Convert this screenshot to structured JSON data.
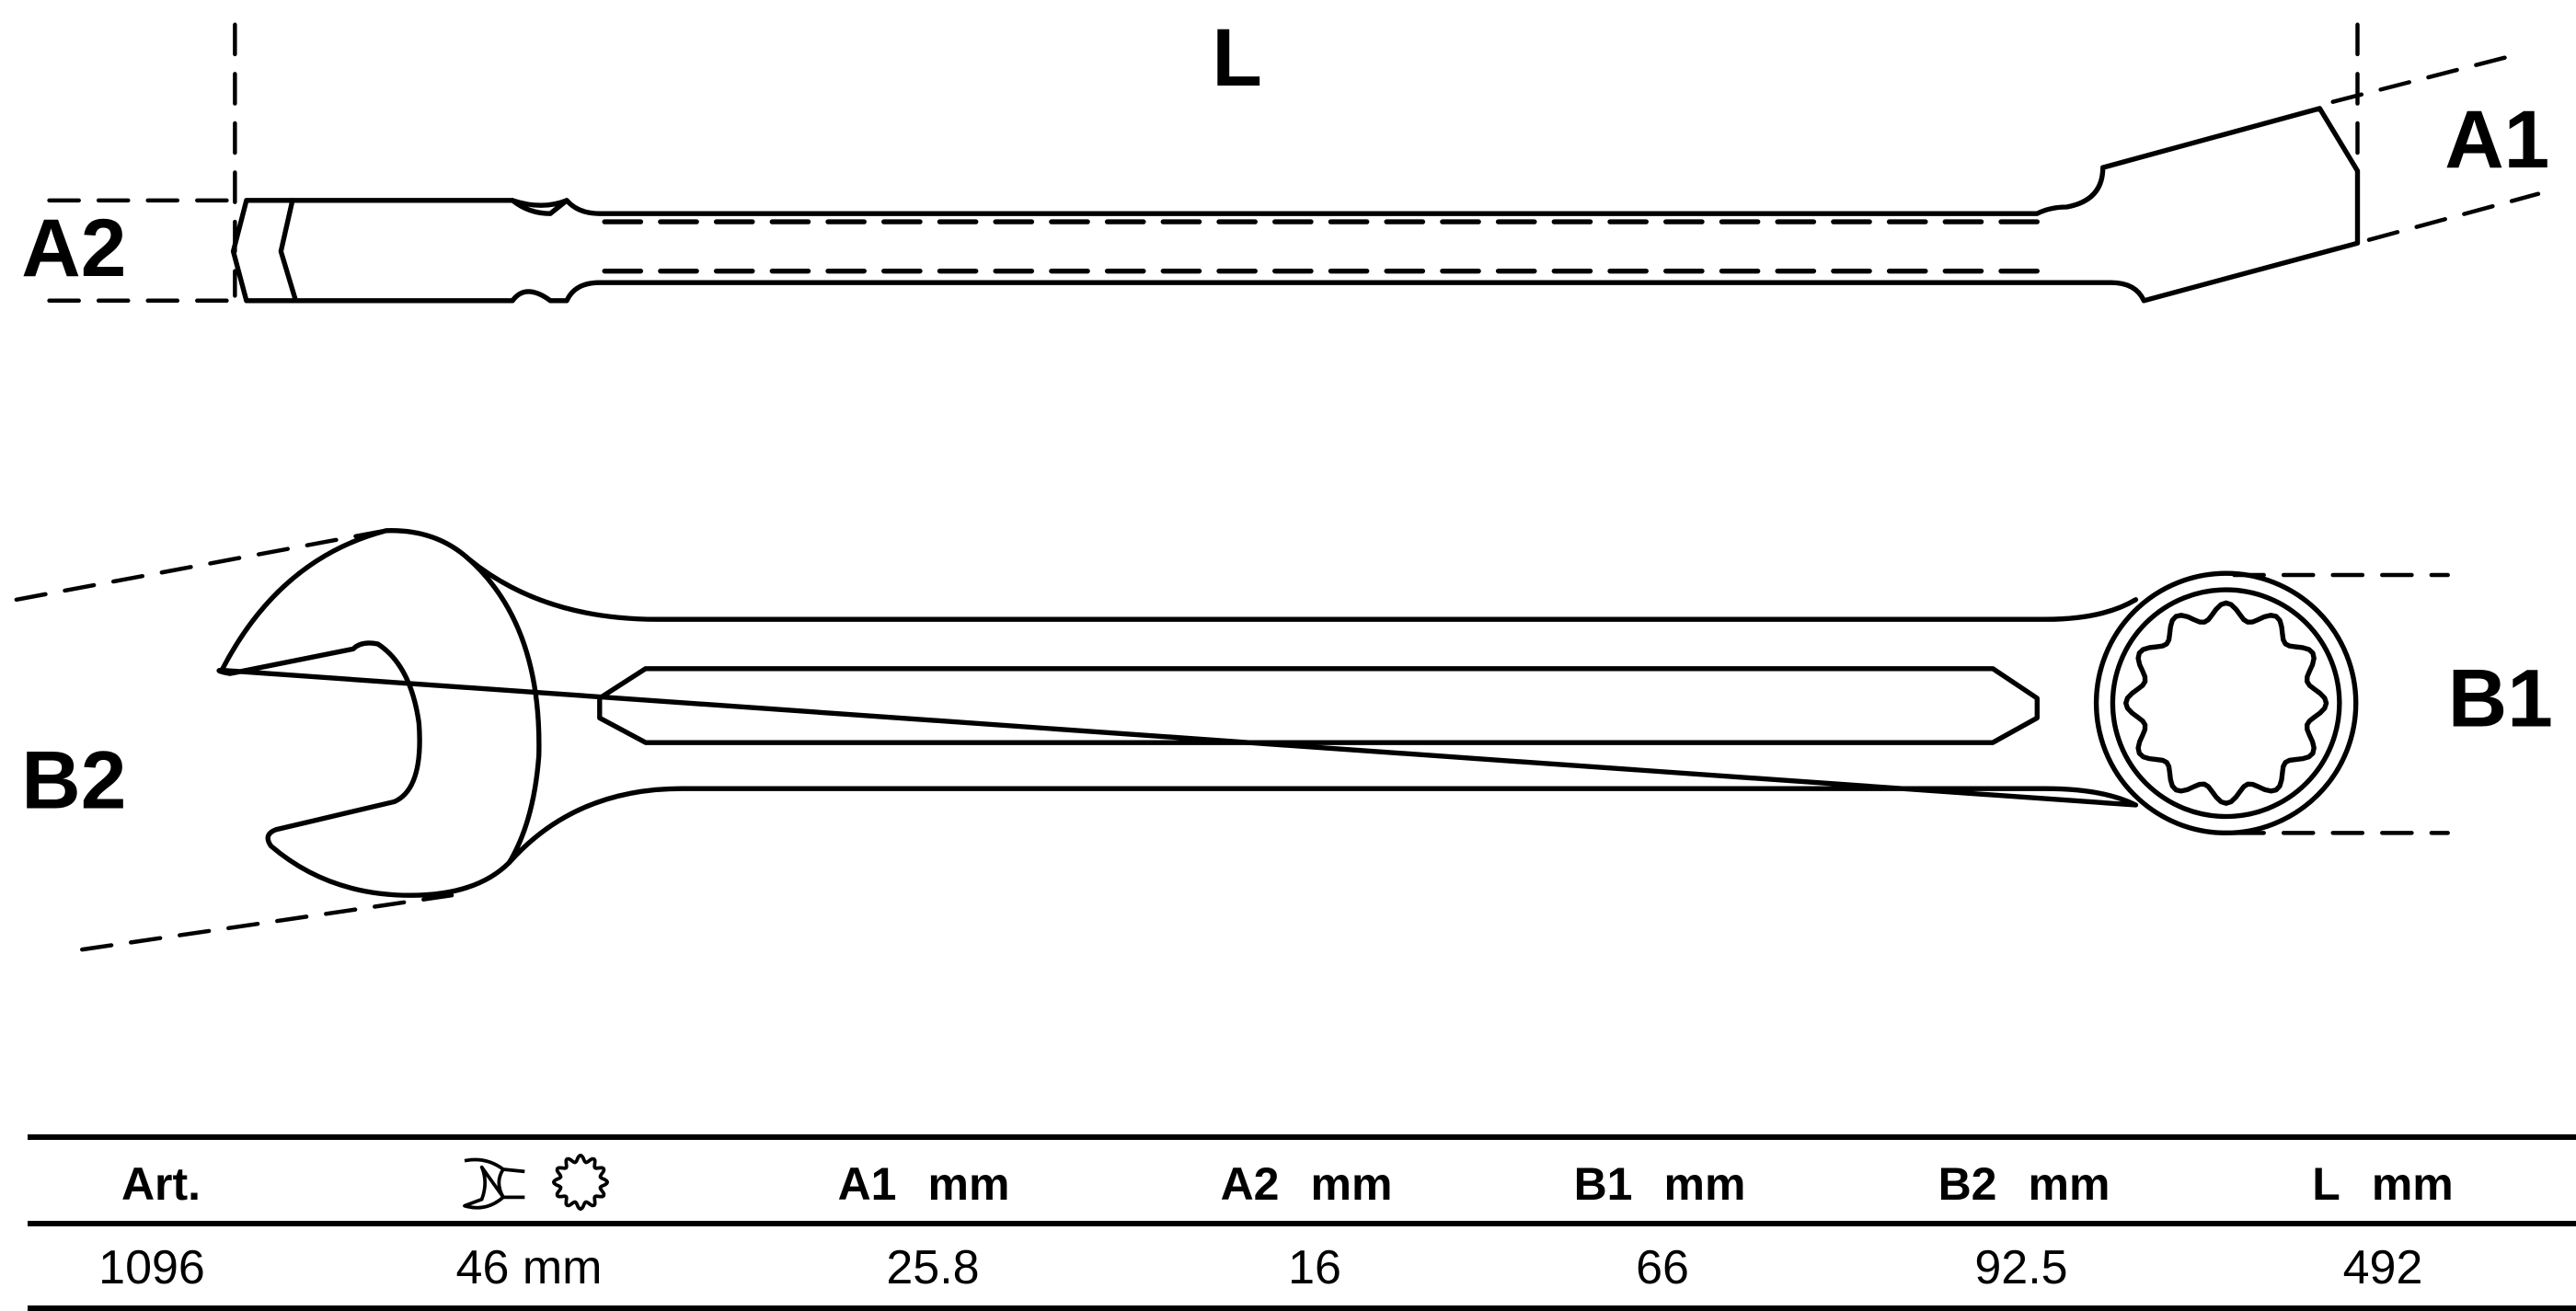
{
  "dimension_labels": {
    "L": "L",
    "A1": "A1",
    "A2": "A2",
    "B1": "B1",
    "B2": "B2"
  },
  "table": {
    "headers": [
      {
        "label": "Art.",
        "unit": ""
      },
      {
        "icon": "open-end-wrench-and-12-point-ring-icon"
      },
      {
        "label": "A1",
        "unit": "mm"
      },
      {
        "label": "A2",
        "unit": "mm"
      },
      {
        "label": "B1",
        "unit": "mm"
      },
      {
        "label": "B2",
        "unit": "mm"
      },
      {
        "label": "L",
        "unit": "mm"
      }
    ],
    "rows": [
      [
        "1096",
        "46 mm",
        "25.8",
        "16",
        "66",
        "92.5",
        "492"
      ]
    ]
  }
}
